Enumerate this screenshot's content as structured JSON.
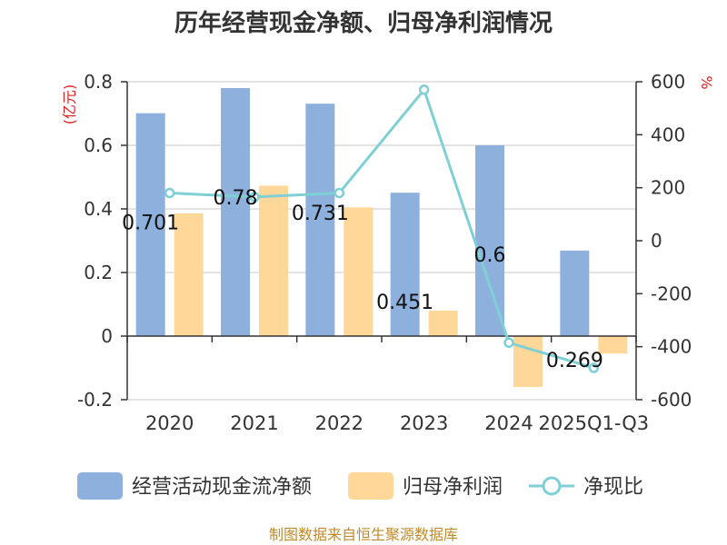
{
  "title": "历年经营现金净额、归母净利润情况",
  "units": {
    "left": "(亿元)",
    "right": "%"
  },
  "source": "制图数据来自恒生聚源数据库",
  "colors": {
    "cash": "#8eb0dc",
    "profit": "#ffd799",
    "ratio": "#7fd0d6"
  },
  "chart_data": {
    "type": "bar",
    "categories": [
      "2020",
      "2021",
      "2022",
      "2023",
      "2024",
      "2025Q1-Q3"
    ],
    "left_axis": {
      "min": -0.2,
      "max": 0.8,
      "ticks": [
        "-0.2",
        "0",
        "0.2",
        "0.4",
        "0.6",
        "0.8"
      ]
    },
    "right_axis": {
      "min": -600,
      "max": 600,
      "ticks": [
        "-600",
        "-400",
        "-200",
        "0",
        "200",
        "400",
        "600"
      ]
    },
    "series": [
      {
        "name": "经营活动现金流净额",
        "type": "bar",
        "axis": "left",
        "values": [
          0.701,
          0.78,
          0.731,
          0.451,
          0.6,
          0.269
        ],
        "labels": [
          "0.701",
          "0.78",
          "0.731",
          "0.451",
          "0.6",
          "0.269"
        ]
      },
      {
        "name": "归母净利润",
        "type": "bar",
        "axis": "left",
        "values": [
          0.386,
          0.473,
          0.405,
          0.08,
          -0.16,
          -0.055
        ]
      },
      {
        "name": "净现比",
        "type": "line",
        "axis": "right",
        "values": [
          180,
          165,
          180,
          570,
          -385,
          -480
        ]
      }
    ],
    "grid": true,
    "legend": "bottom"
  }
}
